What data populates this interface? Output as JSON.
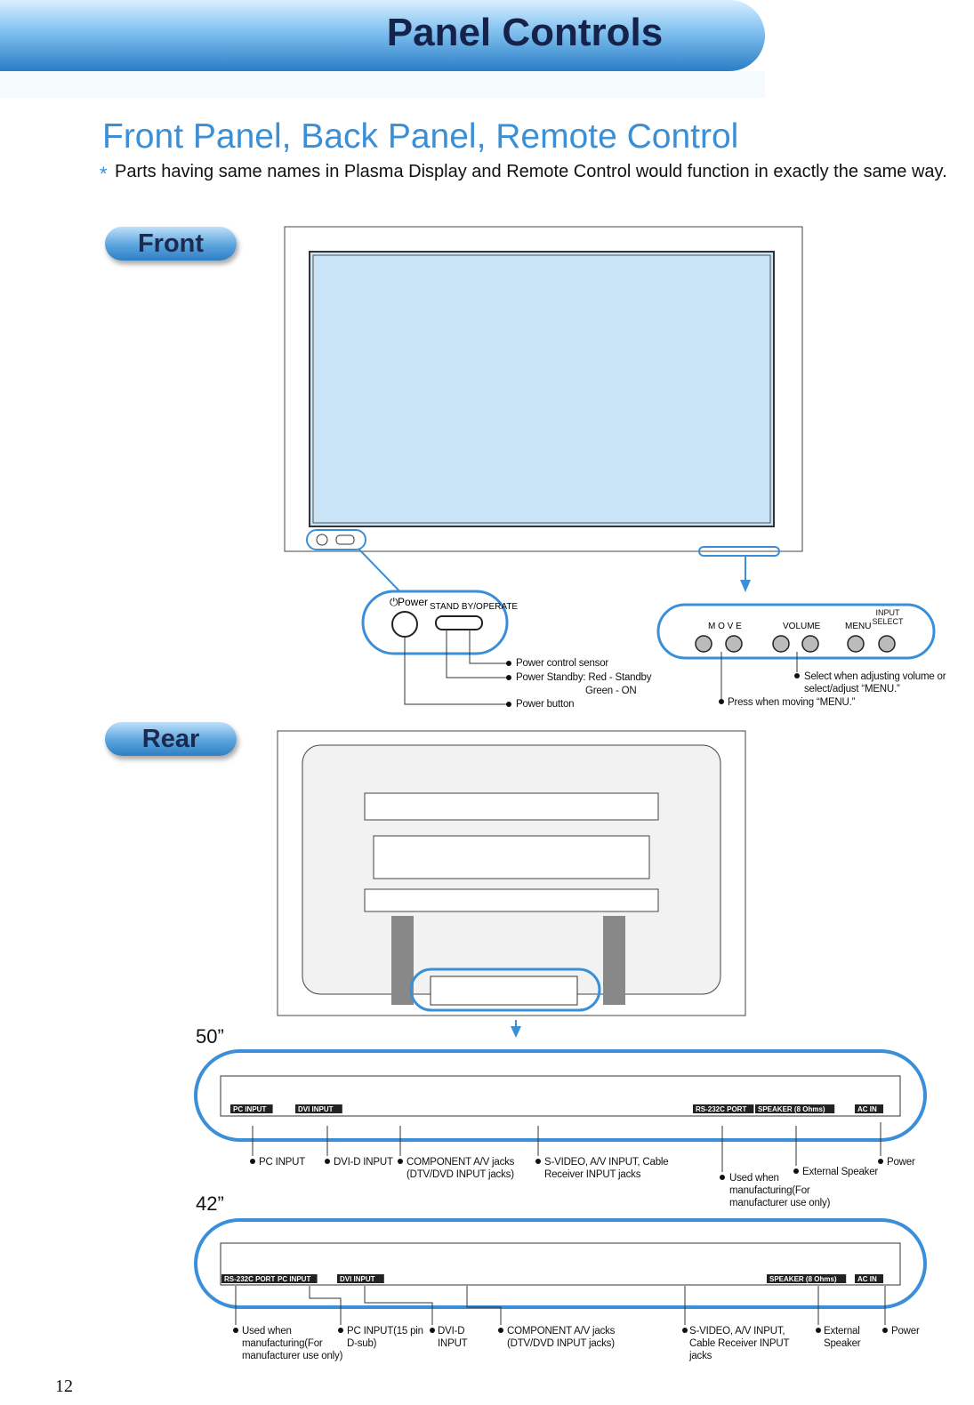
{
  "header": {
    "title": "Panel Controls"
  },
  "section": {
    "title": "Front Panel, Back Panel, Remote Control",
    "note_marker": "*",
    "note": "Parts having same names in Plasma Display and Remote Control would function in exactly the same way."
  },
  "front": {
    "label": "Front",
    "controls": {
      "power": "Power",
      "standby": "STAND BY/OPERATE",
      "move": "M O V E",
      "volume": "VOLUME",
      "menu": "MENU",
      "input_select": "INPUT SELECT"
    },
    "callouts": [
      "Power control sensor",
      "Power Standby: Red - Standby",
      "Green - ON",
      "Power button",
      "Select when adjusting volume or select/adjust “MENU.”",
      "Press when moving “MENU.”"
    ]
  },
  "rear": {
    "label": "Rear",
    "models": [
      {
        "size": "50”",
        "panel_labels": [
          "PC INPUT",
          "DVI INPUT",
          "RS-232C PORT",
          "SPEAKER (8 Ohms)",
          "AC IN"
        ],
        "callouts": [
          "PC INPUT",
          "DVI-D INPUT",
          "COMPONENT A/V jacks (DTV/DVD INPUT jacks)",
          "S-VIDEO, A/V INPUT, Cable Receiver INPUT jacks",
          "Used when manufacturing(For manufacturer use only)",
          "External Speaker",
          "Power"
        ]
      },
      {
        "size": "42”",
        "panel_labels": [
          "RS-232C PORT",
          "PC INPUT",
          "DVI INPUT",
          "SPEAKER (8 Ohms)",
          "AC IN"
        ],
        "callouts": [
          "Used when manufacturing(For manufacturer use only)",
          "PC INPUT(15 pin D-sub)",
          "DVI-D INPUT",
          "COMPONENT A/V jacks (DTV/DVD INPUT jacks)",
          "S-VIDEO, A/V INPUT, Cable Receiver INPUT jacks",
          "External Speaker",
          "Power"
        ]
      }
    ]
  },
  "page_number": "12"
}
